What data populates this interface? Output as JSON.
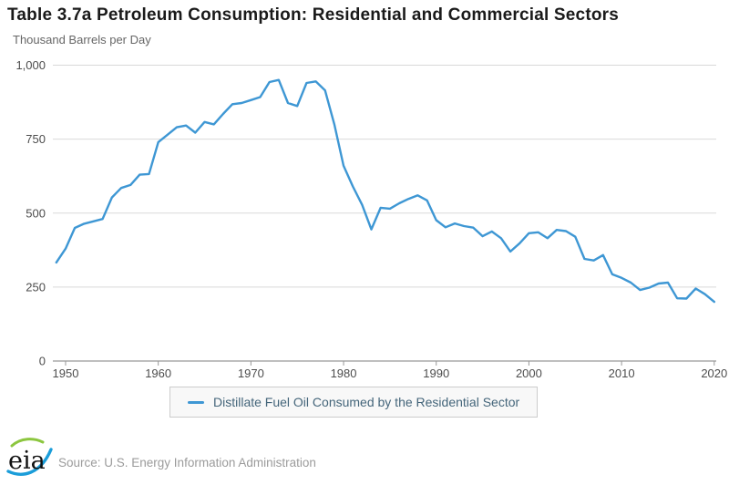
{
  "page": {
    "title": "Table 3.7a Petroleum Consumption: Residential and Commercial Sectors",
    "y_axis_title": "Thousand Barrels per Day",
    "source": "Source: U.S. Energy Information Administration",
    "logo_text": "eia"
  },
  "legend": {
    "label": "Distillate Fuel Oil Consumed by the Residential Sector"
  },
  "colors": {
    "line": "#3e97d4",
    "grid": "#d9d9d9",
    "axis": "#999999",
    "tick_label": "#4d4d4d",
    "title_text": "#1a1a1a",
    "subtitle_text": "#666666",
    "legend_bg": "#f8f8f8",
    "legend_border": "#cccccc",
    "legend_text": "#44657a",
    "source_text": "#9b9b9b",
    "logo_green": "#8cc63f",
    "logo_blue": "#1b9dd9",
    "logo_black": "#111111"
  },
  "chart_data": {
    "type": "line",
    "title": "Table 3.7a Petroleum Consumption: Residential and Commercial Sectors",
    "ylabel": "Thousand Barrels per Day",
    "xlabel": "",
    "grid": "horizontal",
    "legend_position": "bottom",
    "xlim": [
      1949,
      2020
    ],
    "ylim": [
      0,
      1000
    ],
    "yticks": [
      0,
      250,
      500,
      750,
      1000
    ],
    "ytick_labels": [
      "0",
      "250",
      "500",
      "750",
      "1,000"
    ],
    "xticks": [
      1950,
      1960,
      1970,
      1980,
      1990,
      2000,
      2010,
      2020
    ],
    "series": [
      {
        "name": "Distillate Fuel Oil Consumed by the Residential Sector",
        "x": [
          1949,
          1950,
          1951,
          1952,
          1953,
          1954,
          1955,
          1956,
          1957,
          1958,
          1959,
          1960,
          1961,
          1962,
          1963,
          1964,
          1965,
          1966,
          1967,
          1968,
          1969,
          1970,
          1971,
          1972,
          1973,
          1974,
          1975,
          1976,
          1977,
          1978,
          1979,
          1980,
          1981,
          1982,
          1983,
          1984,
          1985,
          1986,
          1987,
          1988,
          1989,
          1990,
          1991,
          1992,
          1993,
          1994,
          1995,
          1996,
          1997,
          1998,
          1999,
          2000,
          2001,
          2002,
          2003,
          2004,
          2005,
          2006,
          2007,
          2008,
          2009,
          2010,
          2011,
          2012,
          2013,
          2014,
          2015,
          2016,
          2017,
          2018,
          2019,
          2020
        ],
        "values": [
          333,
          380,
          450,
          464,
          472,
          480,
          553,
          585,
          595,
          630,
          632,
          740,
          765,
          790,
          796,
          772,
          808,
          800,
          835,
          868,
          872,
          882,
          892,
          943,
          950,
          872,
          862,
          940,
          945,
          915,
          800,
          660,
          590,
          528,
          445,
          518,
          515,
          533,
          548,
          560,
          543,
          476,
          452,
          465,
          456,
          451,
          422,
          438,
          415,
          370,
          398,
          432,
          435,
          415,
          443,
          439,
          420,
          345,
          340,
          358,
          293,
          281,
          265,
          240,
          248,
          262,
          265,
          212,
          211,
          245,
          226,
          200
        ]
      }
    ]
  }
}
